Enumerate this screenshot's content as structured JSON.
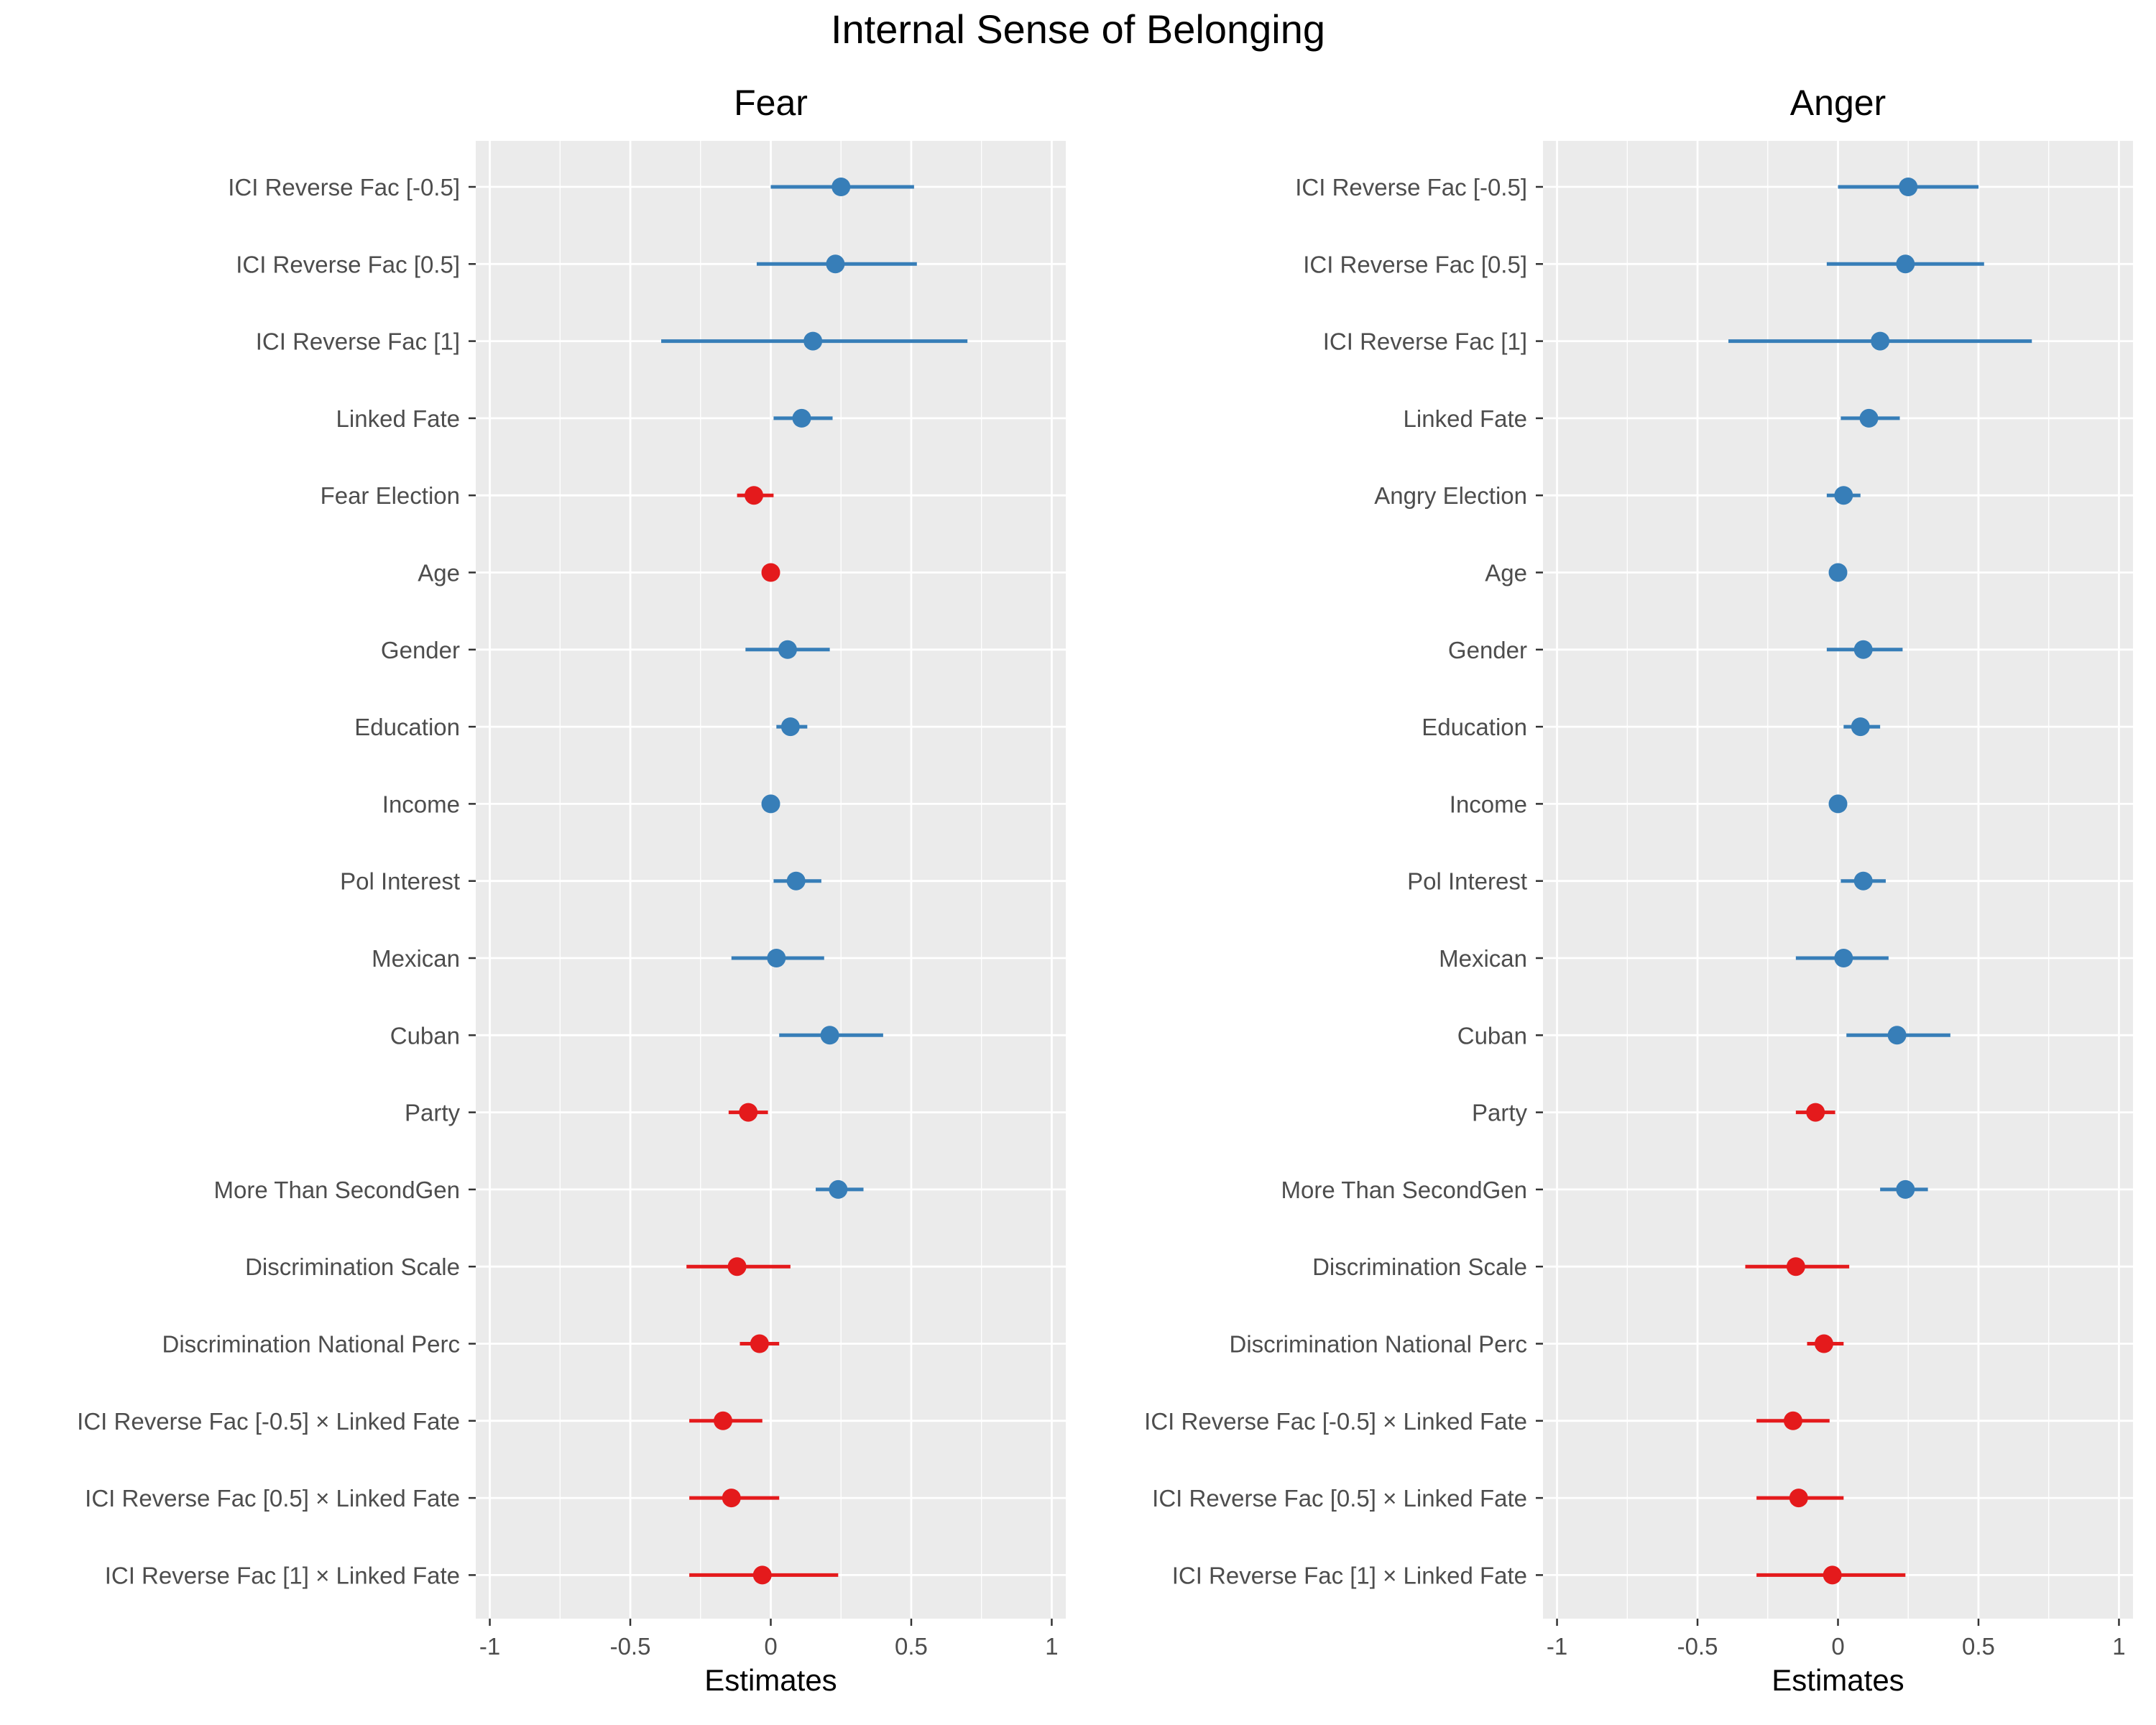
{
  "figure_title": "Internal Sense of Belonging",
  "colors": {
    "positive": "#377EB8",
    "negative": "#E41A1C",
    "panel_bg": "#EBEBEB",
    "grid": "#FFFFFF",
    "axis_text": "#4D4D4D"
  },
  "chart_data": [
    {
      "type": "scatter",
      "subtype": "coefficient-plot",
      "title": "Fear",
      "xlabel": "Estimates",
      "ylabel": "",
      "xlim": [
        -1.05,
        1.05
      ],
      "x_ticks": [
        -1,
        -0.5,
        0,
        0.5,
        1
      ],
      "x_tick_labels": [
        "-1",
        "-0.5",
        "0",
        "0.5",
        "1"
      ],
      "grid": true,
      "terms": [
        {
          "label": "ICI Reverse Fac [-0.5]",
          "estimate": 0.25,
          "low": 0.0,
          "high": 0.51,
          "sign": "positive"
        },
        {
          "label": "ICI Reverse Fac [0.5]",
          "estimate": 0.23,
          "low": -0.05,
          "high": 0.52,
          "sign": "positive"
        },
        {
          "label": "ICI Reverse Fac [1]",
          "estimate": 0.15,
          "low": -0.39,
          "high": 0.7,
          "sign": "positive"
        },
        {
          "label": "Linked Fate",
          "estimate": 0.11,
          "low": 0.01,
          "high": 0.22,
          "sign": "positive"
        },
        {
          "label": "Fear Election",
          "estimate": -0.06,
          "low": -0.12,
          "high": 0.01,
          "sign": "negative"
        },
        {
          "label": "Age",
          "estimate": 0.0,
          "low": -0.01,
          "high": 0.01,
          "sign": "negative"
        },
        {
          "label": "Gender",
          "estimate": 0.06,
          "low": -0.09,
          "high": 0.21,
          "sign": "positive"
        },
        {
          "label": "Education",
          "estimate": 0.07,
          "low": 0.02,
          "high": 0.13,
          "sign": "positive"
        },
        {
          "label": "Income",
          "estimate": 0.0,
          "low": -0.01,
          "high": 0.01,
          "sign": "positive"
        },
        {
          "label": "Pol Interest",
          "estimate": 0.09,
          "low": 0.01,
          "high": 0.18,
          "sign": "positive"
        },
        {
          "label": "Mexican",
          "estimate": 0.02,
          "low": -0.14,
          "high": 0.19,
          "sign": "positive"
        },
        {
          "label": "Cuban",
          "estimate": 0.21,
          "low": 0.03,
          "high": 0.4,
          "sign": "positive"
        },
        {
          "label": "Party",
          "estimate": -0.08,
          "low": -0.15,
          "high": -0.01,
          "sign": "negative"
        },
        {
          "label": "More Than SecondGen",
          "estimate": 0.24,
          "low": 0.16,
          "high": 0.33,
          "sign": "positive"
        },
        {
          "label": "Discrimination Scale",
          "estimate": -0.12,
          "low": -0.3,
          "high": 0.07,
          "sign": "negative"
        },
        {
          "label": "Discrimination National Perc",
          "estimate": -0.04,
          "low": -0.11,
          "high": 0.03,
          "sign": "negative"
        },
        {
          "label": "ICI Reverse Fac [-0.5] × Linked Fate",
          "estimate": -0.17,
          "low": -0.29,
          "high": -0.03,
          "sign": "negative"
        },
        {
          "label": "ICI Reverse Fac [0.5] × Linked Fate",
          "estimate": -0.14,
          "low": -0.29,
          "high": 0.03,
          "sign": "negative"
        },
        {
          "label": "ICI Reverse Fac [1] × Linked Fate",
          "estimate": -0.03,
          "low": -0.29,
          "high": 0.24,
          "sign": "negative"
        }
      ]
    },
    {
      "type": "scatter",
      "subtype": "coefficient-plot",
      "title": "Anger",
      "xlabel": "Estimates",
      "ylabel": "",
      "xlim": [
        -1.05,
        1.05
      ],
      "x_ticks": [
        -1,
        -0.5,
        0,
        0.5,
        1
      ],
      "x_tick_labels": [
        "-1",
        "-0.5",
        "0",
        "0.5",
        "1"
      ],
      "grid": true,
      "terms": [
        {
          "label": "ICI Reverse Fac [-0.5]",
          "estimate": 0.25,
          "low": 0.0,
          "high": 0.5,
          "sign": "positive"
        },
        {
          "label": "ICI Reverse Fac [0.5]",
          "estimate": 0.24,
          "low": -0.04,
          "high": 0.52,
          "sign": "positive"
        },
        {
          "label": "ICI Reverse Fac [1]",
          "estimate": 0.15,
          "low": -0.39,
          "high": 0.69,
          "sign": "positive"
        },
        {
          "label": "Linked Fate",
          "estimate": 0.11,
          "low": 0.01,
          "high": 0.22,
          "sign": "positive"
        },
        {
          "label": "Angry Election",
          "estimate": 0.02,
          "low": -0.04,
          "high": 0.08,
          "sign": "positive"
        },
        {
          "label": "Age",
          "estimate": 0.0,
          "low": -0.01,
          "high": 0.01,
          "sign": "positive"
        },
        {
          "label": "Gender",
          "estimate": 0.09,
          "low": -0.04,
          "high": 0.23,
          "sign": "positive"
        },
        {
          "label": "Education",
          "estimate": 0.08,
          "low": 0.02,
          "high": 0.15,
          "sign": "positive"
        },
        {
          "label": "Income",
          "estimate": 0.0,
          "low": -0.01,
          "high": 0.01,
          "sign": "positive"
        },
        {
          "label": "Pol Interest",
          "estimate": 0.09,
          "low": 0.01,
          "high": 0.17,
          "sign": "positive"
        },
        {
          "label": "Mexican",
          "estimate": 0.02,
          "low": -0.15,
          "high": 0.18,
          "sign": "positive"
        },
        {
          "label": "Cuban",
          "estimate": 0.21,
          "low": 0.03,
          "high": 0.4,
          "sign": "positive"
        },
        {
          "label": "Party",
          "estimate": -0.08,
          "low": -0.15,
          "high": -0.01,
          "sign": "negative"
        },
        {
          "label": "More Than SecondGen",
          "estimate": 0.24,
          "low": 0.15,
          "high": 0.32,
          "sign": "positive"
        },
        {
          "label": "Discrimination Scale",
          "estimate": -0.15,
          "low": -0.33,
          "high": 0.04,
          "sign": "negative"
        },
        {
          "label": "Discrimination National Perc",
          "estimate": -0.05,
          "low": -0.11,
          "high": 0.02,
          "sign": "negative"
        },
        {
          "label": "ICI Reverse Fac [-0.5] × Linked Fate",
          "estimate": -0.16,
          "low": -0.29,
          "high": -0.03,
          "sign": "negative"
        },
        {
          "label": "ICI Reverse Fac [0.5] × Linked Fate",
          "estimate": -0.14,
          "low": -0.29,
          "high": 0.02,
          "sign": "negative"
        },
        {
          "label": "ICI Reverse Fac [1] × Linked Fate",
          "estimate": -0.02,
          "low": -0.29,
          "high": 0.24,
          "sign": "negative"
        }
      ]
    }
  ]
}
